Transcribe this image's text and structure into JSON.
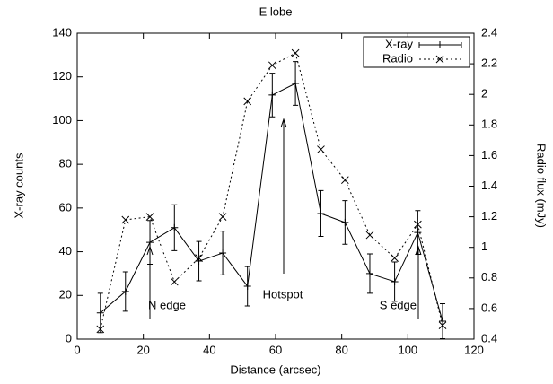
{
  "chart_data": {
    "type": "line",
    "title": "E lobe",
    "x_label": "Distance (arcsec)",
    "y_label": "X-ray counts",
    "y2_label": "Radio flux (mJy)",
    "x": [
      7,
      14.6,
      22,
      29.4,
      36.8,
      44,
      51.5,
      59,
      66,
      73.7,
      81,
      88.5,
      96,
      103,
      110.5
    ],
    "series": [
      {
        "name": "X-ray",
        "color": "#000000",
        "style": "solid",
        "marker": "plus",
        "values": [
          12,
          21.8,
          44.3,
          51,
          35.7,
          39.4,
          24.2,
          111.7,
          117,
          57.5,
          53.4,
          30,
          26.3,
          48.8,
          8.2
        ],
        "errors": [
          9,
          9,
          10,
          10.5,
          9,
          10,
          9,
          10,
          10,
          10.5,
          10,
          9,
          9,
          10,
          8
        ]
      },
      {
        "name": "Radio",
        "color": "#000000",
        "style": "dotted",
        "marker": "cross",
        "axis": "y2",
        "values": [
          0.465,
          1.18,
          1.2,
          0.775,
          0.93,
          1.2,
          1.955,
          2.19,
          2.27,
          1.64,
          1.44,
          1.08,
          0.93,
          1.15,
          0.49
        ]
      }
    ],
    "annotations": [
      "N edge",
      "Hotspot",
      "S edge"
    ],
    "xlim": [
      0,
      120
    ],
    "xticks": [
      0,
      20,
      40,
      60,
      80,
      100,
      120
    ],
    "ylim": [
      0,
      140
    ],
    "yticks": [
      0,
      20,
      40,
      60,
      80,
      100,
      120,
      140
    ],
    "y2lim": [
      0.4,
      2.4
    ],
    "y2ticks": [
      0.4,
      0.6,
      0.8,
      1,
      1.2,
      1.4,
      1.6,
      1.8,
      2,
      2.2,
      2.4
    ],
    "legend": "top-right",
    "grid": false
  }
}
